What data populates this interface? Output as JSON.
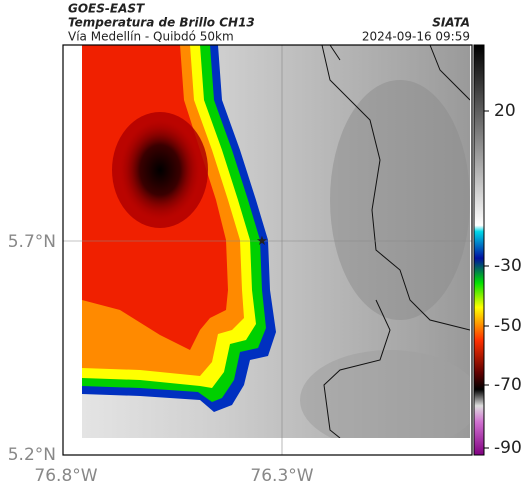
{
  "header": {
    "source": "GOES-EAST",
    "title": "Temperatura de Brillo CH13",
    "subtitle": "Vía Medellín - Quibdó 50km",
    "agency": "SIATA",
    "timestamp": "2024-09-16 09:59"
  },
  "axes": {
    "y_labels": [
      "5.7°N",
      "5.2°N"
    ],
    "x_labels": [
      "76.8°W",
      "76.3°W"
    ]
  },
  "colorbar": {
    "ticks": [
      "20",
      "-30",
      "-50",
      "-70",
      "-90"
    ]
  }
}
